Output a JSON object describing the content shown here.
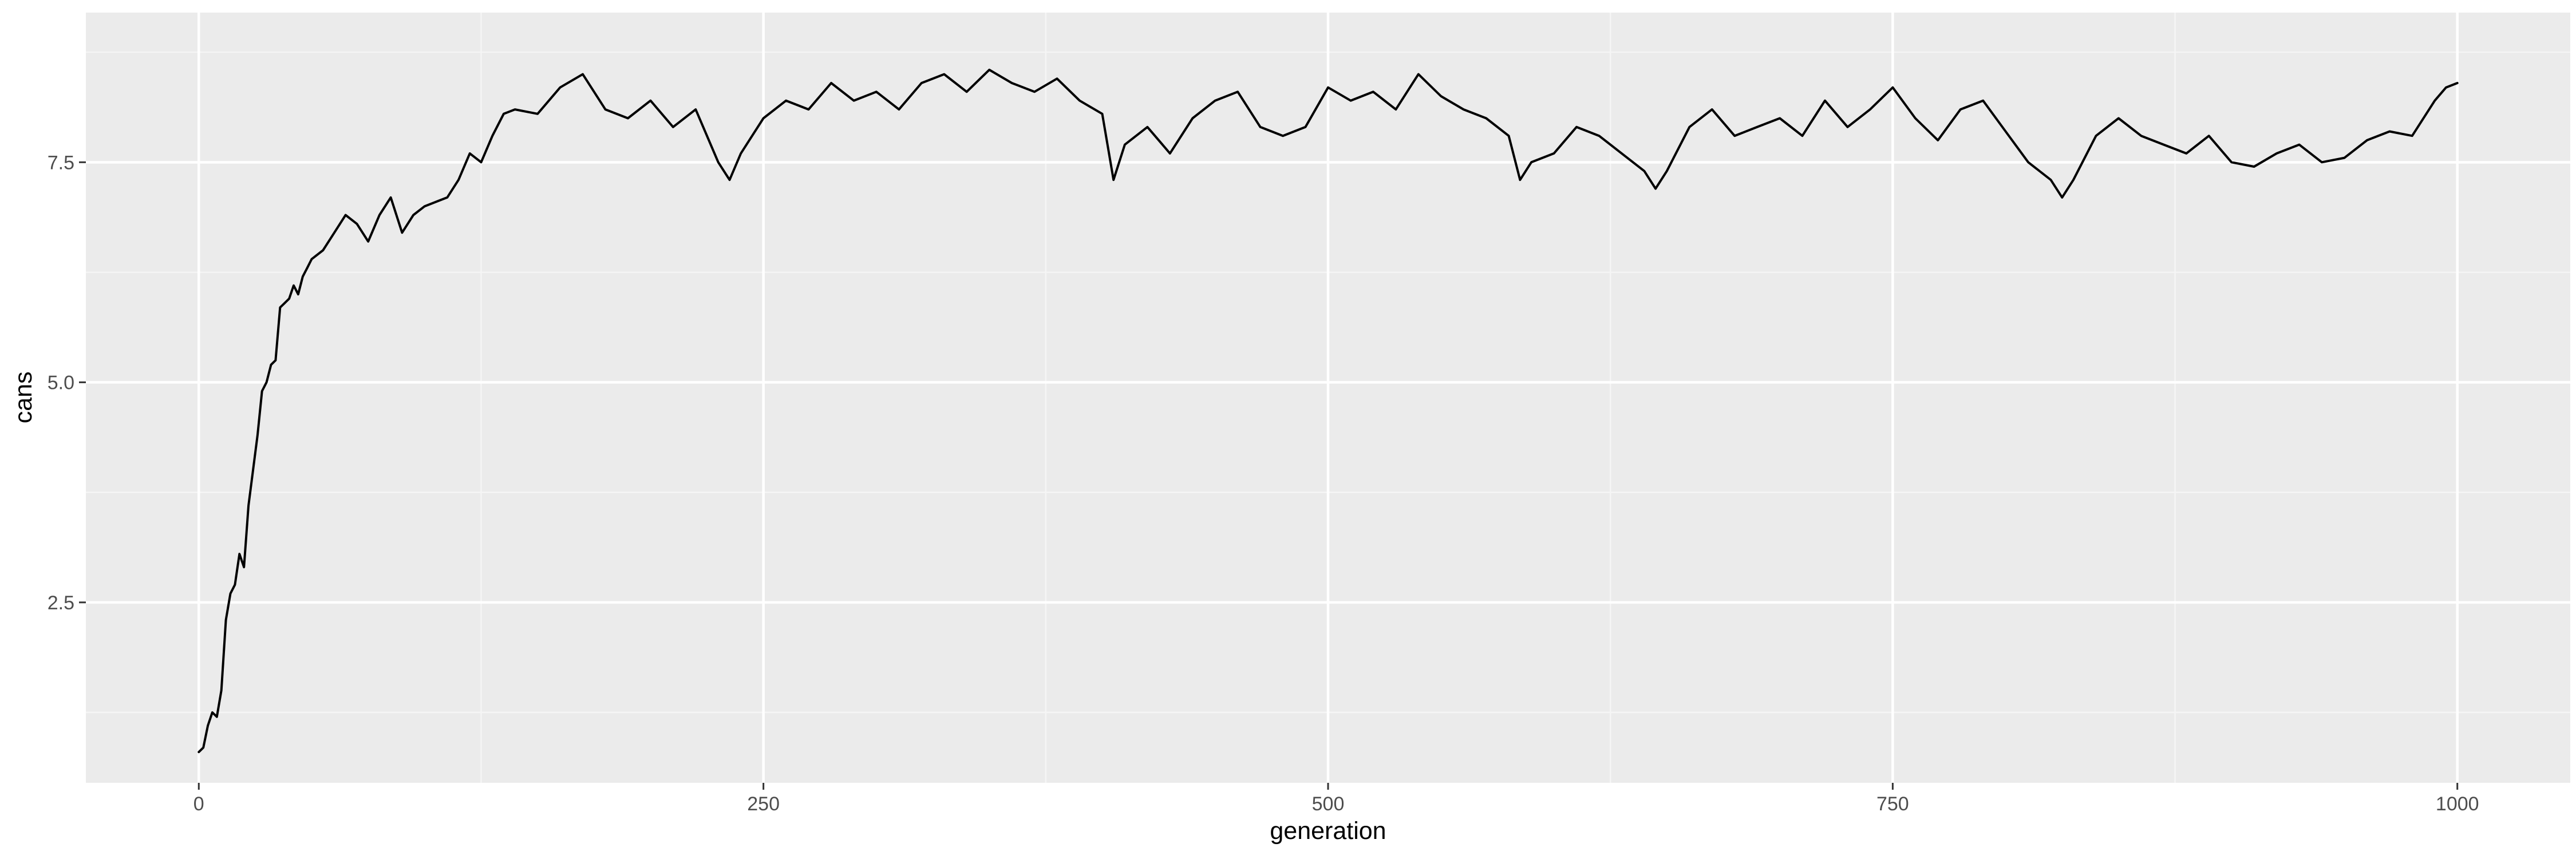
{
  "chart_data": {
    "type": "line",
    "title": "",
    "xlabel": "generation",
    "ylabel": "cans",
    "xlim": [
      -50,
      1050
    ],
    "ylim": [
      0.45,
      9.2
    ],
    "x_ticks": [
      0,
      250,
      500,
      750,
      1000
    ],
    "x_tick_labels": [
      "0",
      "250",
      "500",
      "750",
      "1000"
    ],
    "y_ticks": [
      2.5,
      5.0,
      7.5
    ],
    "y_tick_labels": [
      "2.5",
      "5.0",
      "7.5"
    ],
    "x_minor_ticks": [
      125,
      375,
      625,
      875
    ],
    "y_minor_ticks": [
      1.25,
      3.75,
      6.25,
      8.75
    ],
    "grid": true,
    "legend": "none",
    "colors": {
      "panel_background": "#ebebeb",
      "grid_major": "#ffffff",
      "grid_minor": "#f5f5f5",
      "line": "#000000",
      "tick_label": "#4d4d4d",
      "axis_title": "#000000"
    },
    "series": [
      {
        "x": [
          0,
          2,
          4,
          6,
          8,
          10,
          12,
          14,
          16,
          18,
          20,
          22,
          24,
          26,
          28,
          30,
          32,
          34,
          36,
          38,
          40,
          42,
          44,
          46,
          48,
          50,
          55,
          60,
          65,
          70,
          75,
          80,
          85,
          90,
          95,
          100,
          105,
          110,
          115,
          120,
          125,
          130,
          135,
          140,
          150,
          160,
          170,
          180,
          190,
          200,
          210,
          220,
          230,
          235,
          240,
          245,
          250,
          260,
          270,
          280,
          290,
          300,
          310,
          320,
          330,
          340,
          350,
          360,
          370,
          380,
          390,
          400,
          405,
          410,
          420,
          430,
          440,
          450,
          460,
          470,
          480,
          490,
          500,
          510,
          520,
          530,
          540,
          550,
          560,
          570,
          580,
          585,
          590,
          600,
          610,
          620,
          630,
          640,
          645,
          650,
          660,
          670,
          680,
          690,
          700,
          710,
          720,
          730,
          740,
          750,
          760,
          770,
          780,
          790,
          800,
          810,
          820,
          825,
          830,
          840,
          850,
          860,
          870,
          880,
          890,
          900,
          910,
          920,
          930,
          940,
          950,
          960,
          970,
          980,
          990,
          995,
          1000
        ],
        "y": [
          0.8,
          0.85,
          1.1,
          1.25,
          1.2,
          1.5,
          2.3,
          2.6,
          2.7,
          3.05,
          2.9,
          3.6,
          4.0,
          4.4,
          4.9,
          5.0,
          5.2,
          5.25,
          5.85,
          5.9,
          5.95,
          6.1,
          6.0,
          6.2,
          6.3,
          6.4,
          6.5,
          6.7,
          6.9,
          6.8,
          6.6,
          6.9,
          7.1,
          6.7,
          6.9,
          7.0,
          7.05,
          7.1,
          7.3,
          7.6,
          7.5,
          7.8,
          8.05,
          8.1,
          8.05,
          8.35,
          8.5,
          8.1,
          8.0,
          8.2,
          7.9,
          8.1,
          7.5,
          7.3,
          7.6,
          7.8,
          8.0,
          8.2,
          8.1,
          8.4,
          8.2,
          8.3,
          8.1,
          8.4,
          8.5,
          8.3,
          8.55,
          8.4,
          8.3,
          8.45,
          8.2,
          8.05,
          7.3,
          7.7,
          7.9,
          7.6,
          8.0,
          8.2,
          8.3,
          7.9,
          7.8,
          7.9,
          8.35,
          8.2,
          8.3,
          8.1,
          8.5,
          8.25,
          8.1,
          8.0,
          7.8,
          7.3,
          7.5,
          7.6,
          7.9,
          7.8,
          7.6,
          7.4,
          7.2,
          7.4,
          7.9,
          8.1,
          7.8,
          7.9,
          8.0,
          7.8,
          8.2,
          7.9,
          8.1,
          8.35,
          8.0,
          7.75,
          8.1,
          8.2,
          7.85,
          7.5,
          7.3,
          7.1,
          7.3,
          7.8,
          8.0,
          7.8,
          7.7,
          7.6,
          7.8,
          7.5,
          7.45,
          7.6,
          7.7,
          7.5,
          7.55,
          7.75,
          7.85,
          7.8,
          8.2,
          8.35,
          8.4
        ]
      }
    ]
  }
}
